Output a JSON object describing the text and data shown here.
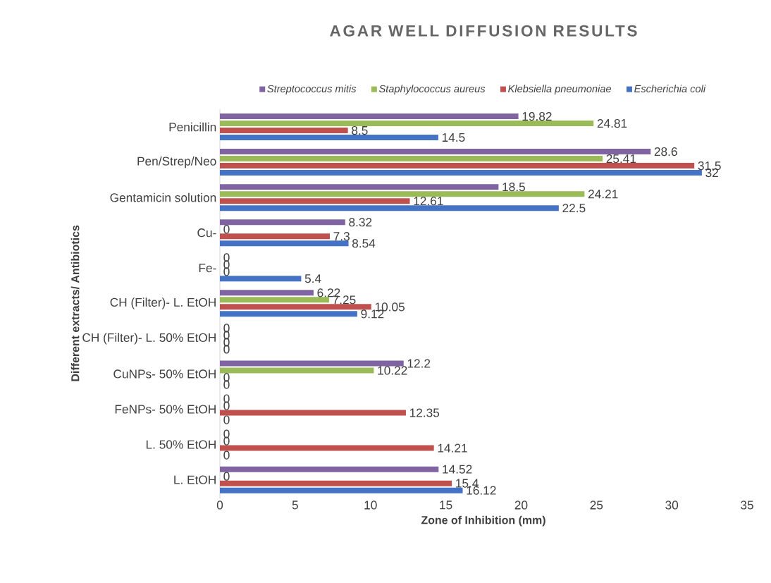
{
  "chart_data": {
    "type": "bar",
    "orientation": "horizontal",
    "title": "AGAR WELL DIFFUSION RESULTS",
    "xlabel": "Zone of Inhibition (mm)",
    "ylabel": "Different extracts/ Antibiotics",
    "categories": [
      "Penicillin",
      "Pen/Strep/Neo",
      "Gentamicin solution",
      "Cu-",
      "Fe-",
      "CH (Filter)- L. EtOH",
      "CH (Filter)- L. 50% EtOH",
      "CuNPs- 50% EtOH",
      "FeNPs- 50% EtOH",
      "L. 50% EtOH",
      "L. EtOH"
    ],
    "series": [
      {
        "name": "Escherichia coli",
        "color": "#4472c4",
        "values": [
          14.5,
          32,
          22.5,
          8.54,
          5.4,
          9.12,
          0,
          0,
          0,
          0,
          16.12
        ]
      },
      {
        "name": "Klebsiella pneumoniae",
        "color": "#c0504d",
        "values": [
          8.5,
          31.5,
          12.61,
          7.3,
          0,
          10.05,
          0,
          0,
          12.35,
          14.21,
          15.4
        ]
      },
      {
        "name": "Staphylococcus aureus",
        "color": "#9bbb59",
        "values": [
          24.81,
          25.41,
          24.21,
          0,
          0,
          7.25,
          0,
          10.22,
          0,
          0,
          0
        ]
      },
      {
        "name": "Streptococcus mitis",
        "color": "#8064a2",
        "values": [
          19.82,
          28.6,
          18.5,
          8.32,
          0,
          6.22,
          0,
          12.2,
          0,
          0,
          14.52
        ]
      }
    ],
    "xlim": [
      0,
      35
    ],
    "xticks": [
      0,
      5,
      10,
      15,
      20,
      25,
      30,
      35
    ],
    "data_labels": true,
    "legend": "top"
  }
}
